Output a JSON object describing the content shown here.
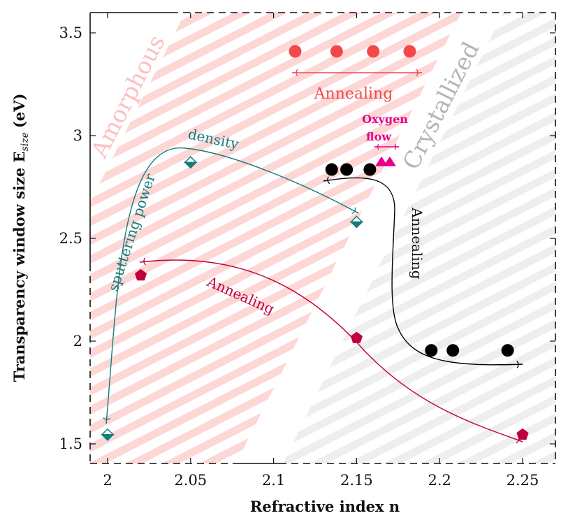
{
  "chart_data": {
    "type": "scatter",
    "title": "",
    "xlabel": "Refractive index n",
    "ylabel": "Transparency window size E",
    "ylabel_sub": "size",
    "ylabel_unit": "(eV)",
    "xlim": [
      1.99,
      2.27
    ],
    "ylim": [
      1.41,
      3.61
    ],
    "x_ticks": [
      2,
      2.05,
      2.1,
      2.15,
      2.2,
      2.25
    ],
    "x_tick_labels": [
      "2",
      "2.05",
      "2.1",
      "2.15",
      "2.2",
      "2.25"
    ],
    "y_ticks": [
      1.5,
      2,
      2.5,
      3,
      3.5
    ],
    "y_tick_labels": [
      "1.5",
      "2",
      "2.5",
      "3",
      "3.5"
    ],
    "grid": false,
    "regions": [
      {
        "name": "Amorphous",
        "color": "#fcc9c9"
      },
      {
        "name": "Crystallized",
        "color": "#bdbdbd"
      }
    ],
    "series": [
      {
        "name": "red-circles",
        "marker": "circle",
        "color": "#f44848",
        "points": [
          [
            2.113,
            3.41
          ],
          [
            2.138,
            3.41
          ],
          [
            2.16,
            3.41
          ],
          [
            2.182,
            3.41
          ]
        ]
      },
      {
        "name": "black-circles-top",
        "marker": "circle",
        "color": "#000000",
        "points": [
          [
            2.135,
            2.835
          ],
          [
            2.144,
            2.835
          ],
          [
            2.158,
            2.835
          ]
        ]
      },
      {
        "name": "black-circles-bottom",
        "marker": "circle",
        "color": "#000000",
        "points": [
          [
            2.195,
            1.955
          ],
          [
            2.208,
            1.955
          ],
          [
            2.241,
            1.955
          ]
        ]
      },
      {
        "name": "magenta-triangles",
        "marker": "triangle",
        "color": "#e6008c",
        "points": [
          [
            2.165,
            2.875
          ],
          [
            2.17,
            2.875
          ]
        ]
      },
      {
        "name": "teal-diamonds",
        "marker": "diamond-half",
        "color": "#137d7a",
        "points": [
          [
            2.0,
            1.545
          ],
          [
            2.05,
            2.87
          ],
          [
            2.15,
            2.58
          ]
        ]
      },
      {
        "name": "crimson-pentagons",
        "marker": "pentagon",
        "color": "#c0003c",
        "points": [
          [
            2.02,
            2.32
          ],
          [
            2.15,
            2.015
          ],
          [
            2.25,
            1.545
          ]
        ]
      }
    ],
    "annotations": [
      {
        "text": "Amorphous",
        "color": "#fcc0c0"
      },
      {
        "text": "Crystallized",
        "color": "#b5b5b5"
      },
      {
        "text": "Annealing",
        "color": "#f44848",
        "arrow": "double-horizontal",
        "from": [
          2.112,
          3.28
        ],
        "to": [
          2.188,
          3.28
        ]
      },
      {
        "text": "Oxygen",
        "color": "#e6008c"
      },
      {
        "text": "flow",
        "color": "#e6008c",
        "arrow": "double-horizontal",
        "from": [
          2.16,
          2.955
        ],
        "to": [
          2.176,
          2.955
        ]
      },
      {
        "text": "density",
        "color": "#137d7a"
      },
      {
        "text": "sputtering power",
        "color": "#137d7a"
      },
      {
        "text": "Annealing",
        "color": "#c0003c"
      },
      {
        "text": "Annealing",
        "color": "#111111"
      }
    ]
  }
}
